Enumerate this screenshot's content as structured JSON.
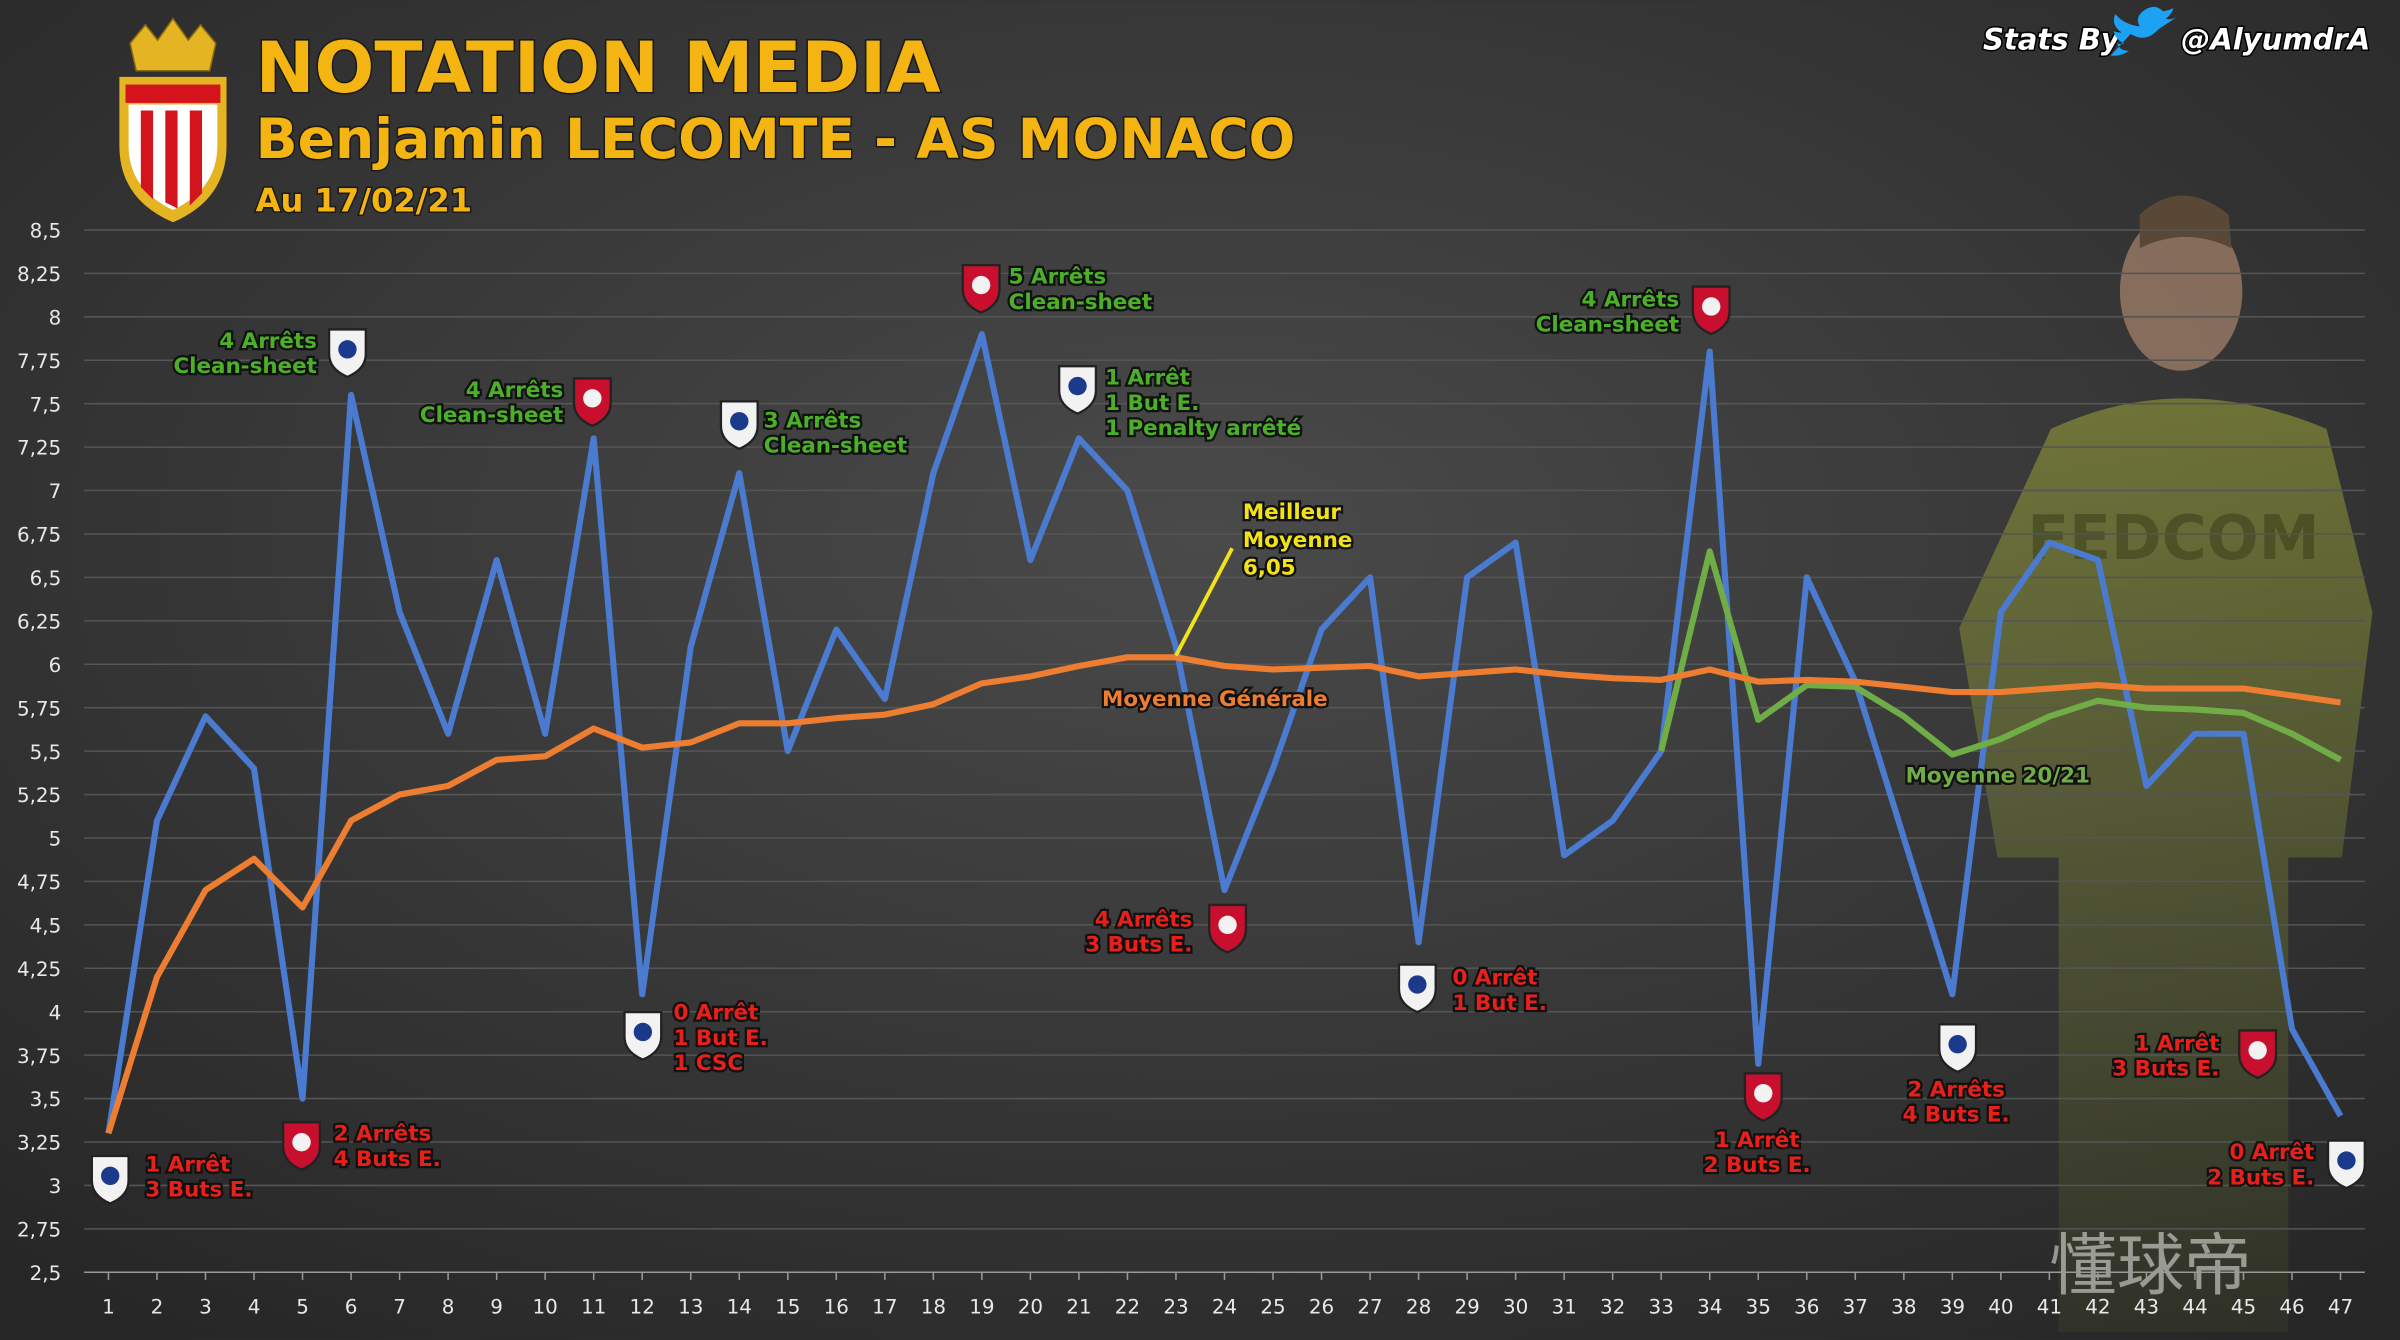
{
  "chart_data": {
    "type": "line",
    "title": "NOTATION MEDIA",
    "subtitle": "Benjamin LECOMTE - AS MONACO",
    "date": "Au 17/02/21",
    "credit": "Stats By",
    "handle": "@AlyumdrA",
    "watermark": "懂球帝",
    "x": [
      1,
      2,
      3,
      4,
      5,
      6,
      7,
      8,
      9,
      10,
      11,
      12,
      13,
      14,
      15,
      16,
      17,
      18,
      19,
      20,
      21,
      22,
      23,
      24,
      25,
      26,
      27,
      28,
      29,
      30,
      31,
      32,
      33,
      34,
      35,
      36,
      37,
      38,
      39,
      40,
      41,
      42,
      43,
      44,
      45,
      46,
      47
    ],
    "xlim": [
      0.5,
      47.5
    ],
    "ylim": [
      2.5,
      8.5
    ],
    "yticks": [
      {
        "value": 2.5,
        "label": "2,5"
      },
      {
        "value": 2.75,
        "label": "2,75"
      },
      3,
      {
        "value": 3.25,
        "label": "3,25"
      },
      {
        "value": 3.5,
        "label": "3,5"
      },
      {
        "value": 3.75,
        "label": "3,75"
      },
      4,
      {
        "value": 4.25,
        "label": "4,25"
      },
      {
        "value": 4.5,
        "label": "4,5"
      },
      {
        "value": 4.75,
        "label": "4,75"
      },
      5,
      {
        "value": 5.25,
        "label": "5,25"
      },
      {
        "value": 5.5,
        "label": "5,5"
      },
      {
        "value": 5.75,
        "label": "5,75"
      },
      6,
      {
        "value": 6.25,
        "label": "6,25"
      },
      {
        "value": 6.5,
        "label": "6,5"
      },
      {
        "value": 6.75,
        "label": "6,75"
      },
      7,
      {
        "value": 7.25,
        "label": "7,25"
      },
      {
        "value": 7.5,
        "label": "7,5"
      },
      {
        "value": 7.75,
        "label": "7,75"
      },
      8,
      {
        "value": 8.25,
        "label": "8,25"
      },
      {
        "value": 8.5,
        "label": "8,5"
      }
    ],
    "grid": true,
    "series": [
      {
        "color": "#4a7bd0",
        "values": [
          3.3,
          5.1,
          5.7,
          5.4,
          3.5,
          7.55,
          6.3,
          5.6,
          6.6,
          5.6,
          7.3,
          4.1,
          6.1,
          7.1,
          5.5,
          6.2,
          5.8,
          7.1,
          7.9,
          6.6,
          7.3,
          7.0,
          6.1,
          4.7,
          5.4,
          6.2,
          6.5,
          4.4,
          6.5,
          6.7,
          4.9,
          5.1,
          5.5,
          7.8,
          3.7,
          6.5,
          5.9,
          5.0,
          4.1,
          6.3,
          6.7,
          6.6,
          5.3,
          5.6,
          5.6,
          3.9,
          3.4
        ]
      },
      {
        "name": "Moyenne Générale",
        "color": "#ed7d31",
        "values": [
          3.3,
          4.2,
          4.7,
          4.88,
          4.6,
          5.1,
          5.25,
          5.3,
          5.45,
          5.47,
          5.63,
          5.52,
          5.55,
          5.66,
          5.66,
          5.69,
          5.71,
          5.77,
          5.89,
          5.93,
          5.99,
          6.04,
          6.04,
          5.99,
          5.97,
          5.98,
          5.99,
          5.93,
          5.95,
          5.97,
          5.94,
          5.92,
          5.91,
          5.97,
          5.9,
          5.91,
          5.9,
          5.87,
          5.84,
          5.84,
          5.86,
          5.88,
          5.86,
          5.86,
          5.86,
          5.82,
          5.78
        ]
      },
      {
        "name": "Moyenne 20/21",
        "color": "#70ad47",
        "values": [
          null,
          null,
          null,
          null,
          null,
          null,
          null,
          null,
          null,
          null,
          null,
          null,
          null,
          null,
          null,
          null,
          null,
          null,
          null,
          null,
          null,
          null,
          null,
          null,
          null,
          null,
          null,
          null,
          null,
          null,
          null,
          null,
          5.5,
          6.65,
          5.68,
          5.88,
          5.87,
          5.7,
          5.48,
          5.57,
          5.7,
          5.79,
          5.75,
          5.74,
          5.72,
          5.6,
          5.45
        ]
      }
    ],
    "best": {
      "lines": [
        "Meilleur",
        "Moyenne",
        "6,05"
      ],
      "x": 23,
      "value": 6.05,
      "color": "#f2e21a"
    },
    "annotations": [
      {
        "x": 6,
        "color": "#4caf28",
        "lines": [
          "4 Arrêts",
          "Clean-sheet"
        ]
      },
      {
        "x": 11,
        "color": "#4caf28",
        "lines": [
          "4 Arrêts",
          "Clean-sheet"
        ]
      },
      {
        "x": 14,
        "color": "#4caf28",
        "lines": [
          "3 Arrêts",
          "Clean-sheet"
        ]
      },
      {
        "x": 19,
        "color": "#4caf28",
        "lines": [
          "5 Arrêts",
          "Clean-sheet"
        ]
      },
      {
        "x": 21,
        "color": "#4caf28",
        "lines": [
          "1 Arrêt",
          "1 But E.",
          "1 Penalty arrêté"
        ]
      },
      {
        "x": 34,
        "color": "#4caf28",
        "lines": [
          "4 Arrêts",
          "Clean-sheet"
        ]
      },
      {
        "x": 1,
        "color": "#e8201a",
        "lines": [
          "1 Arrêt",
          "3 Buts E."
        ]
      },
      {
        "x": 5,
        "color": "#e8201a",
        "lines": [
          "2 Arrêts",
          "4 Buts E."
        ]
      },
      {
        "x": 12,
        "color": "#e8201a",
        "lines": [
          "0 Arrêt",
          "1 But E.",
          "1 CSC"
        ]
      },
      {
        "x": 24,
        "color": "#e8201a",
        "lines": [
          "4 Arrêts",
          "3 Buts E."
        ]
      },
      {
        "x": 28,
        "color": "#e8201a",
        "lines": [
          "0 Arrêt",
          "1 But E."
        ]
      },
      {
        "x": 35,
        "color": "#e8201a",
        "lines": [
          "1 Arrêt",
          "2 Buts E."
        ]
      },
      {
        "x": 39,
        "color": "#e8201a",
        "lines": [
          "2 Arrêts",
          "4 Buts E."
        ]
      },
      {
        "x": 45,
        "color": "#e8201a",
        "lines": [
          "1 Arrêt",
          "3 Buts E."
        ]
      },
      {
        "x": 47,
        "color": "#e8201a",
        "lines": [
          "0 Arrêt",
          "2 Buts E."
        ]
      }
    ]
  }
}
